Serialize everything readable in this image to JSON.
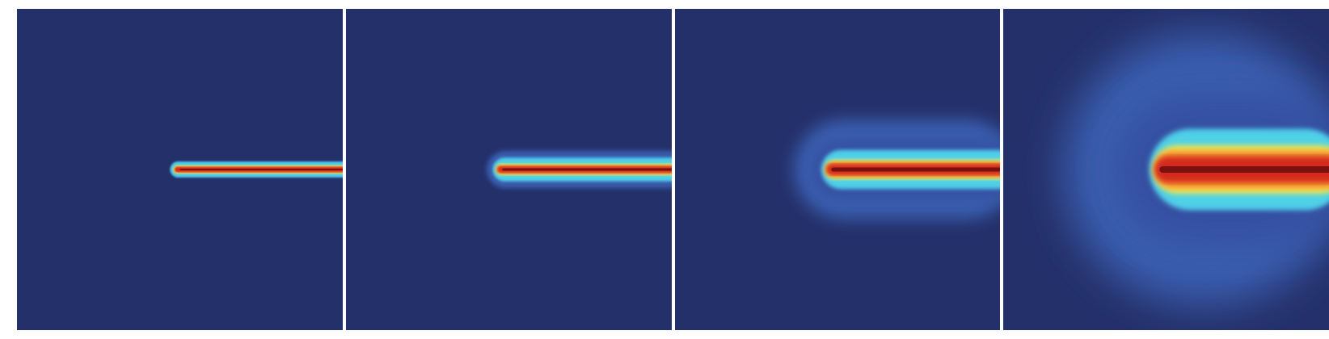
{
  "figure": {
    "panels": [
      {
        "id": "panel-1",
        "stage": 1
      },
      {
        "id": "panel-2",
        "stage": 2
      },
      {
        "id": "panel-3",
        "stage": 3
      },
      {
        "id": "panel-4",
        "stage": 4
      }
    ],
    "colors": {
      "background": "#24306a",
      "halo_outer": "#3a5fb0",
      "halo_mid": "#4bb8e6",
      "ring_cyan": "#4fd2e6",
      "ring_yellow": "#f7e34a",
      "ring_orange": "#f28a2e",
      "core_red": "#d42a1c",
      "core_dark": "#7a1010"
    },
    "icons": [
      "heatmap-panel"
    ]
  }
}
